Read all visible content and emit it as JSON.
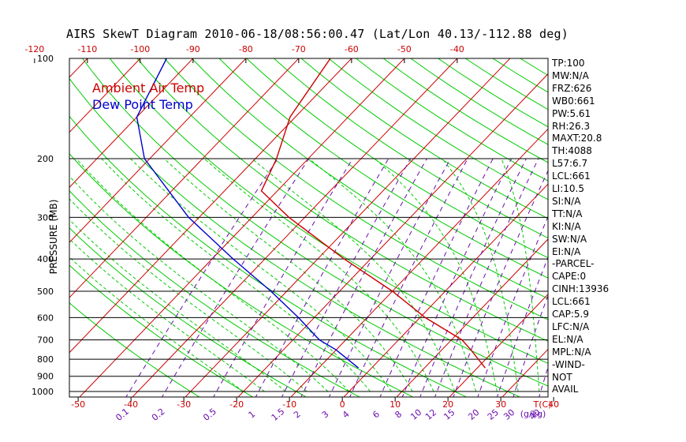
{
  "title": "AIRS SkewT Diagram 2010-06-18/08:56:00.47 (Lat/Lon 40.13/-112.88 deg)",
  "colors": {
    "temperature": "#cc0000",
    "dewpoint": "#0000cc",
    "isotherm": "#cc0000",
    "dry_adiabat": "#00cc00",
    "moist_adiabat": "#00cc00",
    "mixing_ratio": "#6a0dad",
    "isobar": "#000000"
  },
  "legend": [
    {
      "label": "Ambient Air Temp",
      "color": "#cc0000"
    },
    {
      "label": "Dew Point Temp",
      "color": "#0000cc"
    }
  ],
  "indices": [
    "TP:100",
    "MW:N/A",
    "FRZ:626",
    "WB0:661",
    "PW:5.61",
    "RH:26.3",
    "MAXT:20.8",
    "TH:4088",
    "L57:6.7",
    "LCL:661",
    "LI:10.5",
    "SI:N/A",
    "TT:N/A",
    "KI:N/A",
    "SW:N/A",
    "EI:N/A",
    "-PARCEL-",
    "CAPE:0",
    "CINH:13936",
    "LCL:661",
    "CAP:5.9",
    "LFC:N/A",
    "EL:N/A",
    "MPL:N/A",
    "-WIND-",
    "NOT",
    "AVAIL"
  ],
  "chart_data": {
    "type": "line",
    "title": "AIRS SkewT Diagram 2010-06-18/08:56:00.47 (Lat/Lon 40.13/-112.88 deg)",
    "ylabel": "PRESSURE (MB)",
    "y_scale": "log",
    "ylim": [
      1000,
      100
    ],
    "pressure_ticks": [
      100,
      200,
      300,
      400,
      500,
      600,
      700,
      800,
      900,
      1000
    ],
    "top_temperature_ticks": [
      -120,
      -110,
      -100,
      -90,
      -80,
      -70,
      -60,
      -50,
      -40
    ],
    "bottom_temperature_ticks": [
      -50,
      -40,
      -30,
      -20,
      -10,
      0,
      10,
      20,
      30,
      40
    ],
    "bottom_temperature_unit": "T(C)",
    "mixing_ratio_ticks": [
      "0.1",
      "0.2",
      "0.5",
      "1",
      "1.5",
      "2",
      "3",
      "4",
      "6",
      "8",
      "10",
      "12",
      "15",
      "20",
      "25",
      "30",
      "40"
    ],
    "mixing_ratio_unit": "(g/kg)",
    "series": [
      {
        "name": "Ambient Air Temp",
        "pressure": [
          850,
          750,
          700,
          600,
          500,
          400,
          300,
          250,
          200,
          150,
          100
        ],
        "temperature": [
          21.5,
          15.5,
          12,
          1,
          -10,
          -25,
          -43,
          -53,
          -56,
          -61,
          -64
        ]
      },
      {
        "name": "Dew Point Temp",
        "pressure": [
          850,
          750,
          700,
          600,
          500,
          400,
          300,
          200,
          150,
          100
        ],
        "temperature": [
          -2.5,
          -10,
          -15,
          -23,
          -33,
          -46,
          -62,
          -81,
          -90,
          -95
        ]
      }
    ]
  }
}
